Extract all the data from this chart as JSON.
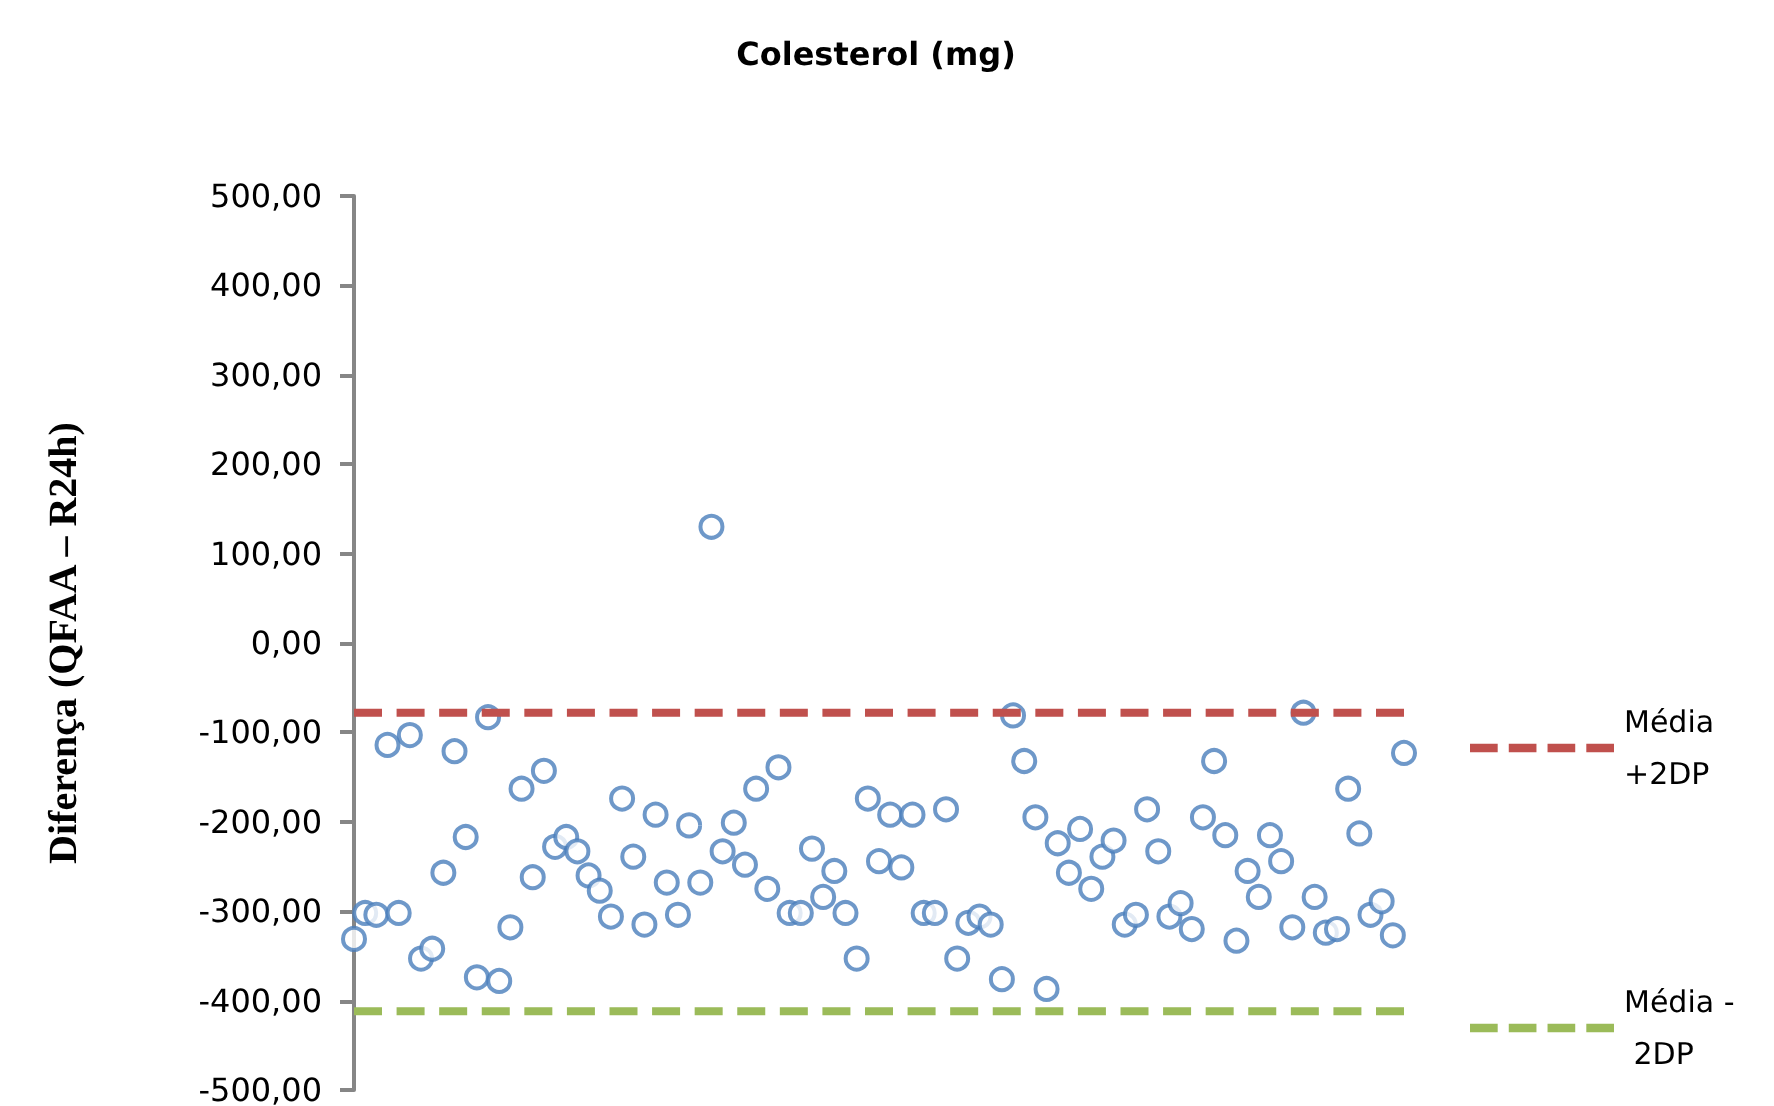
{
  "chart_data": {
    "type": "scatter",
    "title": "Colesterol (mg)",
    "ylabel": "Diferença (QFAA – R24h)",
    "categories": [
      null,
      null,
      null,
      null,
      null,
      null,
      null,
      null,
      null,
      null,
      null,
      null,
      null,
      null,
      null,
      null,
      null,
      null,
      null,
      null,
      null,
      null,
      null,
      null,
      null,
      null,
      null,
      null,
      null,
      null,
      null,
      null,
      null,
      null,
      null,
      null,
      null,
      null,
      null,
      null,
      null,
      null,
      null,
      null,
      null,
      null,
      null,
      null,
      null,
      null,
      null,
      null,
      null,
      null,
      null,
      null,
      null,
      null,
      null,
      null,
      null,
      null,
      null,
      null,
      null,
      null,
      null,
      null,
      null,
      null,
      null,
      null,
      null,
      null,
      null,
      null,
      null,
      null,
      null,
      null,
      null,
      null,
      null,
      null,
      null,
      null,
      null,
      null,
      null,
      null,
      null,
      null,
      null,
      null,
      null
    ],
    "series": [
      {
        "color": "#4a7ebb",
        "marker": "circle",
        "values": [
          -331,
          -302,
          -304,
          -114,
          -302,
          -103,
          -353,
          -342,
          -257,
          -121,
          -217,
          -374,
          -83,
          -378,
          -318,
          -163,
          -262,
          -143,
          -228,
          -217,
          -233,
          -260,
          -277,
          -306,
          -174,
          -239,
          -315,
          -192,
          -268,
          -304,
          -204,
          -268,
          130,
          -233,
          -201,
          -248,
          -163,
          -275,
          -139,
          -302,
          -302,
          -230,
          -284,
          -255,
          -302,
          -353,
          -174,
          -244,
          -192,
          -251,
          -192,
          -302,
          -302,
          -186,
          -353,
          -313,
          -306,
          -315,
          -376,
          -81,
          -132,
          -195,
          -387,
          -224,
          -257,
          -208,
          -275,
          -239,
          -221,
          -315,
          -304,
          -186,
          -233,
          -306,
          -291,
          -320,
          -195,
          -132,
          -215,
          -333,
          -255,
          -284,
          -215,
          -244,
          -318,
          -78,
          -284,
          -324,
          -320,
          -163,
          -213,
          -304,
          -289,
          -327,
          -123
        ]
      },
      {
        "type": "line",
        "name": "Média +2DP",
        "color": "#c0504d",
        "line_style": "dashed",
        "marker": "none",
        "values": [
          -78,
          -78,
          -78,
          -78,
          -78,
          -78,
          -78,
          -78,
          -78,
          -78,
          -78,
          -78,
          -78,
          -78,
          -78,
          -78,
          -78,
          -78,
          -78,
          -78,
          -78,
          -78,
          -78,
          -78,
          -78,
          -78,
          -78,
          -78,
          -78,
          -78,
          -78,
          -78,
          -78,
          -78,
          -78,
          -78,
          -78,
          -78,
          -78,
          -78,
          -78,
          -78,
          -78,
          -78,
          -78,
          -78,
          -78,
          -78,
          -78,
          -78,
          -78,
          -78,
          -78,
          -78,
          -78,
          -78,
          -78,
          -78,
          -78,
          -78,
          -78,
          -78,
          -78,
          -78,
          -78,
          -78,
          -78,
          -78,
          -78,
          -78,
          -78,
          -78,
          -78,
          -78,
          -78,
          -78,
          -78,
          -78,
          -78,
          -78,
          -78,
          -78,
          -78,
          -78,
          -78,
          -78,
          -78,
          -78,
          -78,
          -78,
          -78,
          -78,
          -78,
          -78,
          -78
        ]
      },
      {
        "type": "line",
        "name": "Média - 2DP",
        "color": "#9bbb59",
        "line_style": "dashed",
        "marker": "none",
        "values": [
          -412,
          -412,
          -412,
          -412,
          -412,
          -412,
          -412,
          -412,
          -412,
          -412,
          -412,
          -412,
          -412,
          -412,
          -412,
          -412,
          -412,
          -412,
          -412,
          -412,
          -412,
          -412,
          -412,
          -412,
          -412,
          -412,
          -412,
          -412,
          -412,
          -412,
          -412,
          -412,
          -412,
          -412,
          -412,
          -412,
          -412,
          -412,
          -412,
          -412,
          -412,
          -412,
          -412,
          -412,
          -412,
          -412,
          -412,
          -412,
          -412,
          -412,
          -412,
          -412,
          -412,
          -412,
          -412,
          -412,
          -412,
          -412,
          -412,
          -412,
          -412,
          -412,
          -412,
          -412,
          -412,
          -412,
          -412,
          -412,
          -412,
          -412,
          -412,
          -412,
          -412,
          -412,
          -412,
          -412,
          -412,
          -412,
          -412,
          -412,
          -412,
          -412,
          -412,
          -412,
          -412,
          -412,
          -412,
          -412,
          -412,
          -412,
          -412,
          -412,
          -412,
          -412,
          -412
        ]
      }
    ],
    "ylim": [
      -500,
      500
    ],
    "yticks": [
      {
        "value": 500,
        "label": "500,00"
      },
      {
        "value": 400,
        "label": "400,00"
      },
      {
        "value": 300,
        "label": "300,00"
      },
      {
        "value": 200,
        "label": "200,00"
      },
      {
        "value": 100,
        "label": "100,00"
      },
      {
        "value": 0,
        "label": "0,00"
      },
      {
        "value": -100,
        "label": "-100,00"
      },
      {
        "value": -200,
        "label": "-200,00"
      },
      {
        "value": -300,
        "label": "-300,00"
      },
      {
        "value": -400,
        "label": "-400,00"
      },
      {
        "value": -500,
        "label": "-500,00"
      }
    ],
    "tick_labels": "y",
    "legend": "right"
  }
}
